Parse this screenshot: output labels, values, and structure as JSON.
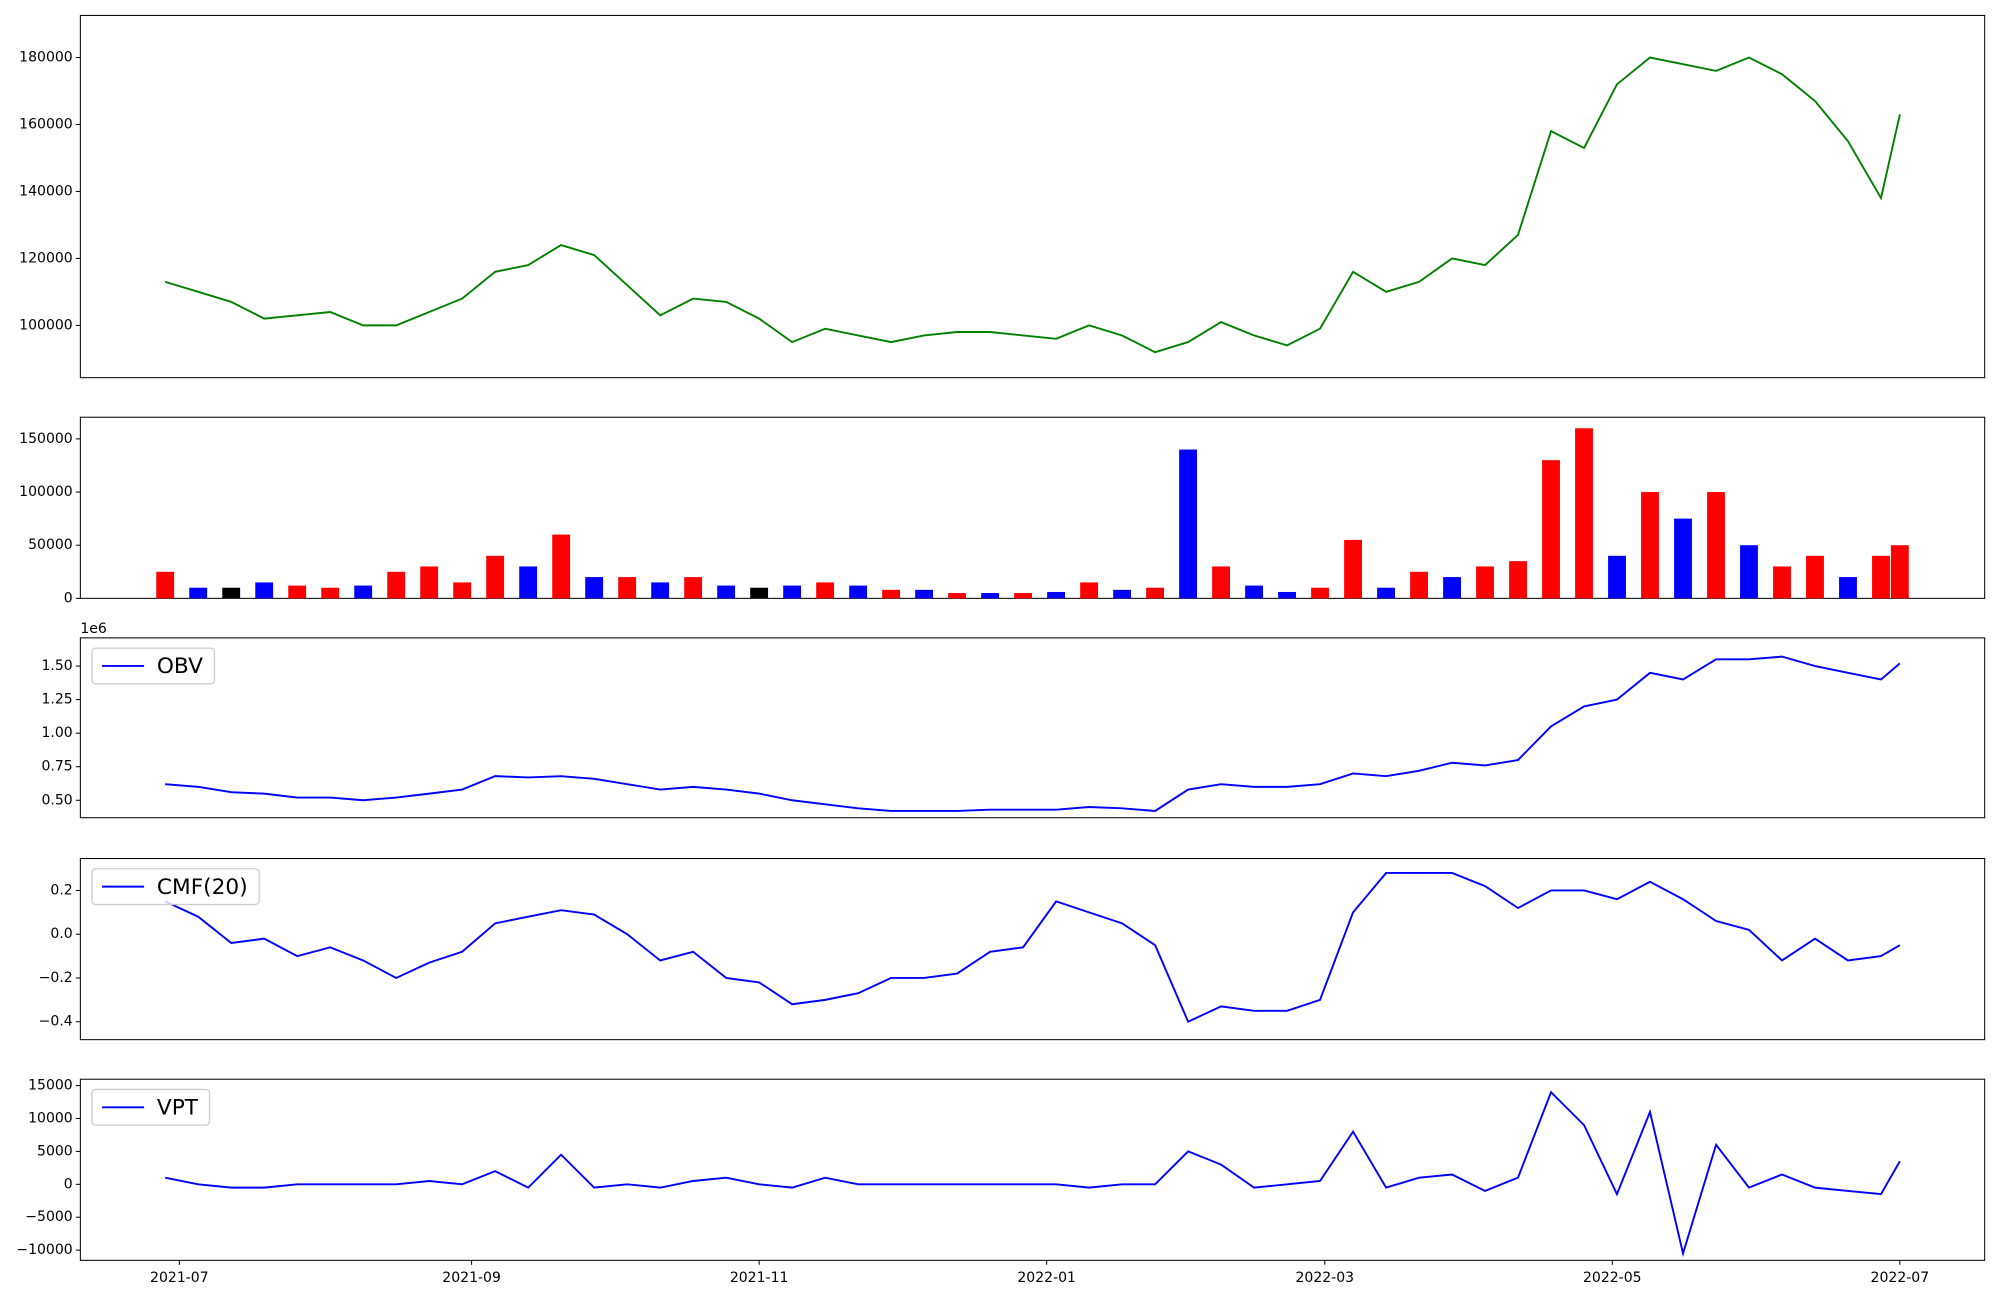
{
  "chart_data": [
    {
      "type": "line",
      "x": [
        "2021-06-28",
        "2021-07-05",
        "2021-07-12",
        "2021-07-19",
        "2021-07-26",
        "2021-08-02",
        "2021-08-09",
        "2021-08-16",
        "2021-08-23",
        "2021-08-30",
        "2021-09-06",
        "2021-09-13",
        "2021-09-20",
        "2021-09-27",
        "2021-10-04",
        "2021-10-11",
        "2021-10-18",
        "2021-10-25",
        "2021-11-01",
        "2021-11-08",
        "2021-11-15",
        "2021-11-22",
        "2021-11-29",
        "2021-12-06",
        "2021-12-13",
        "2021-12-20",
        "2021-12-27",
        "2022-01-03",
        "2022-01-10",
        "2022-01-17",
        "2022-01-24",
        "2022-01-31",
        "2022-02-07",
        "2022-02-14",
        "2022-02-21",
        "2022-02-28",
        "2022-03-07",
        "2022-03-14",
        "2022-03-21",
        "2022-03-28",
        "2022-04-04",
        "2022-04-11",
        "2022-04-18",
        "2022-04-25",
        "2022-05-02",
        "2022-05-09",
        "2022-05-16",
        "2022-05-23",
        "2022-05-30",
        "2022-06-06",
        "2022-06-13",
        "2022-06-20",
        "2022-06-27",
        "2022-07-01"
      ],
      "xlim": [
        "2021-06-10",
        "2022-07-19"
      ],
      "series": [
        {
          "color": "#008000",
          "values": [
            113000,
            110000,
            107000,
            102000,
            103000,
            104000,
            100000,
            100000,
            104000,
            108000,
            116000,
            118000,
            124000,
            121000,
            112000,
            103000,
            108000,
            107000,
            102000,
            95000,
            99000,
            97000,
            95000,
            97000,
            98000,
            98000,
            97000,
            96000,
            100000,
            97000,
            92000,
            95000,
            101000,
            97000,
            94000,
            99000,
            116000,
            110000,
            113000,
            120000,
            118000,
            127000,
            158000,
            153000,
            172000,
            180000,
            178000,
            176000,
            180000,
            175000,
            167000,
            155000,
            138000,
            163000
          ]
        }
      ],
      "ylim": [
        84380,
        192570
      ],
      "yticks": [
        100000,
        120000,
        140000,
        160000,
        180000
      ]
    },
    {
      "type": "bar",
      "series": [
        {
          "values": [
            25000,
            10000,
            10000,
            15000,
            12000,
            10000,
            12000,
            25000,
            30000,
            15000,
            40000,
            30000,
            60000,
            20000,
            20000,
            15000,
            20000,
            12000,
            10000,
            12000,
            15000,
            12000,
            8000,
            8000,
            5000,
            5000,
            5000,
            6000,
            15000,
            8000,
            10000,
            140000,
            30000,
            12000,
            6000,
            10000,
            55000,
            10000,
            25000,
            20000,
            30000,
            35000,
            130000,
            160000,
            40000,
            100000,
            75000,
            100000,
            50000,
            30000,
            40000,
            20000,
            40000,
            50000
          ],
          "colors": [
            "red",
            "blue",
            "black",
            "blue",
            "red",
            "red",
            "blue",
            "red",
            "red",
            "red",
            "red",
            "blue",
            "red",
            "blue",
            "red",
            "blue",
            "red",
            "blue",
            "black",
            "blue",
            "red",
            "blue",
            "red",
            "blue",
            "red",
            "blue",
            "red",
            "blue",
            "red",
            "blue",
            "red",
            "blue",
            "red",
            "blue",
            "blue",
            "red",
            "red",
            "blue",
            "red",
            "blue",
            "red",
            "red",
            "red",
            "red",
            "blue",
            "red",
            "blue",
            "red",
            "blue",
            "red",
            "red",
            "blue",
            "red",
            "red"
          ]
        }
      ],
      "ylim": [
        0,
        170400
      ],
      "yticks": [
        0,
        50000,
        100000,
        150000
      ]
    },
    {
      "type": "line",
      "offset_label": "1e6",
      "legend": "upper left",
      "series": [
        {
          "name": "OBV",
          "color": "#0000ff",
          "values": [
            0.62,
            0.6,
            0.56,
            0.55,
            0.52,
            0.52,
            0.5,
            0.52,
            0.55,
            0.58,
            0.68,
            0.67,
            0.68,
            0.66,
            0.62,
            0.58,
            0.6,
            0.58,
            0.55,
            0.5,
            0.47,
            0.44,
            0.42,
            0.42,
            0.42,
            0.43,
            0.43,
            0.43,
            0.45,
            0.44,
            0.42,
            0.58,
            0.62,
            0.6,
            0.6,
            0.62,
            0.7,
            0.68,
            0.72,
            0.78,
            0.76,
            0.8,
            1.05,
            1.2,
            1.25,
            1.45,
            1.4,
            1.55,
            1.55,
            1.57,
            1.5,
            1.45,
            1.4,
            1.52
          ]
        }
      ],
      "ylim": [
        0.37,
        1.71
      ],
      "yticks": [
        {
          "value": 0.5,
          "label": "0.50"
        },
        {
          "value": 0.75,
          "label": "0.75"
        },
        {
          "value": 1,
          "label": "1.00"
        },
        {
          "value": 1.25,
          "label": "1.25"
        },
        {
          "value": 1.5,
          "label": "1.50"
        }
      ]
    },
    {
      "type": "line",
      "legend": "upper left",
      "series": [
        {
          "name": "CMF(20)",
          "color": "#0000ff",
          "values": [
            0.15,
            0.08,
            -0.04,
            -0.02,
            -0.1,
            -0.06,
            -0.12,
            -0.2,
            -0.13,
            -0.08,
            0.05,
            0.08,
            0.11,
            0.09,
            0.0,
            -0.12,
            -0.08,
            -0.2,
            -0.22,
            -0.32,
            -0.3,
            -0.27,
            -0.2,
            -0.2,
            -0.18,
            -0.08,
            -0.06,
            0.15,
            0.1,
            0.05,
            -0.05,
            -0.4,
            -0.33,
            -0.35,
            -0.35,
            -0.3,
            0.1,
            0.28,
            0.28,
            0.28,
            0.22,
            0.12,
            0.2,
            0.2,
            0.16,
            0.24,
            0.16,
            0.06,
            0.02,
            -0.12,
            -0.02,
            -0.12,
            -0.1,
            -0.05
          ]
        }
      ],
      "ylim": [
        -0.482,
        0.346
      ],
      "yticks": [
        {
          "value": -0.4,
          "label": "−0.4"
        },
        {
          "value": -0.2,
          "label": "−0.2"
        },
        {
          "value": 0,
          "label": "0.0"
        },
        {
          "value": 0.2,
          "label": "0.2"
        }
      ]
    },
    {
      "type": "line",
      "legend": "upper left",
      "series": [
        {
          "name": "VPT",
          "color": "#0000ff",
          "values": [
            1000,
            0,
            -500,
            -500,
            0,
            0,
            0,
            0,
            500,
            0,
            2000,
            -500,
            4500,
            -500,
            0,
            -500,
            500,
            1000,
            0,
            -500,
            1000,
            0,
            0,
            0,
            0,
            0,
            0,
            0,
            -500,
            0,
            0,
            5000,
            3000,
            -500,
            0,
            500,
            8000,
            -500,
            1000,
            1500,
            -1000,
            1000,
            14000,
            9000,
            -1500,
            11000,
            -10500,
            6000,
            -500,
            1500,
            -500,
            -1000,
            -1500,
            3500
          ]
        }
      ],
      "ylim": [
        -11550,
        15970
      ],
      "yticks": [
        {
          "value": -10000,
          "label": "−10000"
        },
        {
          "value": -5000,
          "label": "−5000"
        },
        0,
        5000,
        10000,
        15000
      ],
      "xticks": [
        {
          "value": "2021-07-01",
          "label": "2021-07"
        },
        {
          "value": "2021-09-01",
          "label": "2021-09"
        },
        {
          "value": "2021-11-01",
          "label": "2021-11"
        },
        {
          "value": "2022-01-01",
          "label": "2022-01"
        },
        {
          "value": "2022-03-01",
          "label": "2022-03"
        },
        {
          "value": "2022-05-01",
          "label": "2022-05"
        },
        {
          "value": "2022-07-01",
          "label": "2022-07"
        }
      ]
    }
  ]
}
